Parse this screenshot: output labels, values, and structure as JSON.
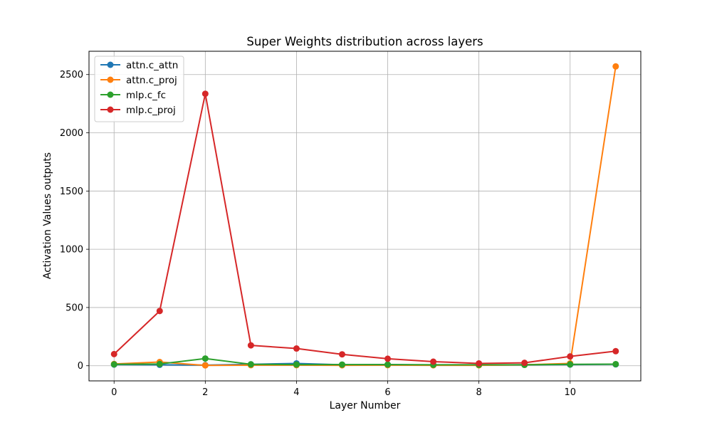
{
  "chart_data": {
    "type": "line",
    "title": "Super Weights distribution across layers",
    "xlabel": "Layer Number",
    "ylabel": "Activation Values outputs",
    "x": [
      0,
      1,
      2,
      3,
      4,
      5,
      6,
      7,
      8,
      9,
      10,
      11
    ],
    "xlim": [
      -0.55,
      11.55
    ],
    "ylim": [
      -130,
      2700
    ],
    "xticks": [
      0,
      2,
      4,
      6,
      8,
      10
    ],
    "yticks": [
      0,
      500,
      1000,
      1500,
      2000,
      2500
    ],
    "grid": true,
    "legend_position": "upper-left",
    "series": [
      {
        "name": "attn.c_attn",
        "color": "#1f77b4",
        "values": [
          10,
          8,
          5,
          12,
          20,
          8,
          10,
          6,
          6,
          8,
          10,
          12
        ]
      },
      {
        "name": "attn.c_proj",
        "color": "#ff7f0e",
        "values": [
          15,
          32,
          3,
          5,
          5,
          4,
          5,
          4,
          4,
          8,
          20,
          2570
        ]
      },
      {
        "name": "mlp.c_fc",
        "color": "#2ca02c",
        "values": [
          12,
          15,
          62,
          12,
          10,
          10,
          10,
          8,
          8,
          8,
          12,
          14
        ]
      },
      {
        "name": "mlp.c_proj",
        "color": "#d62728",
        "values": [
          100,
          470,
          2335,
          175,
          148,
          98,
          60,
          35,
          20,
          25,
          80,
          125
        ]
      }
    ]
  }
}
